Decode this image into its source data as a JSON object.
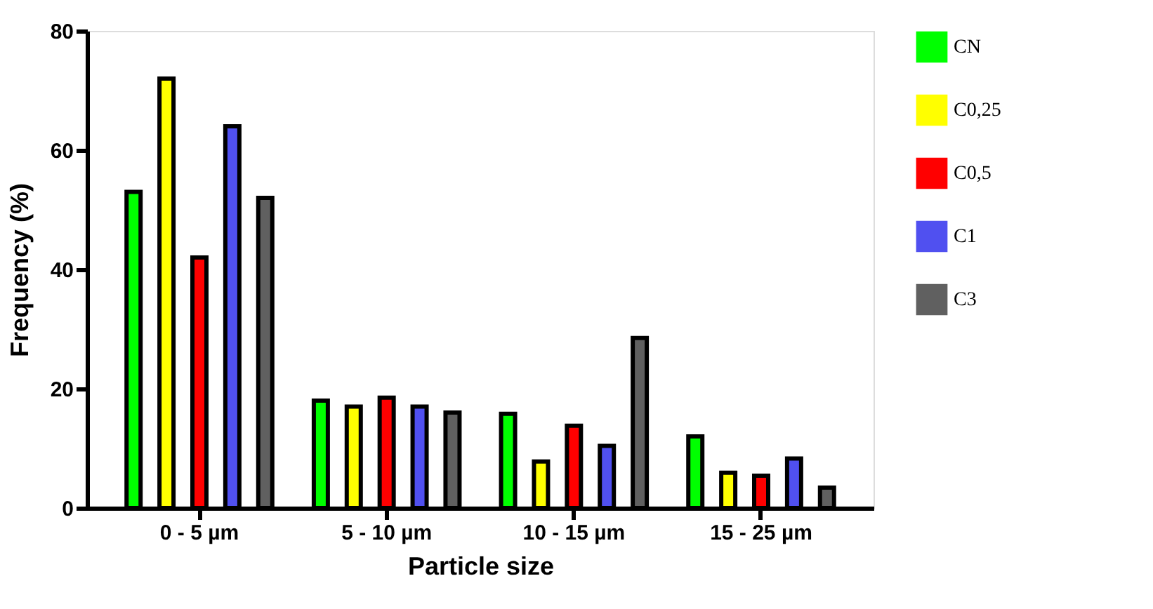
{
  "chart_data": {
    "type": "bar",
    "xlabel": "Particle size",
    "ylabel": "Frequency (%)",
    "categories": [
      "0 - 5 µm",
      "5 - 10 µm",
      "10 - 15 µm",
      "15 - 25 µm"
    ],
    "series": [
      {
        "name": "CN",
        "color": "#00ff00",
        "values": [
          53,
          18,
          15.8,
          12
        ]
      },
      {
        "name": "C0,25",
        "color": "#ffff00",
        "values": [
          72,
          17,
          7.8,
          5.9
        ]
      },
      {
        "name": "C0,5",
        "color": "#ff0000",
        "values": [
          42,
          18.5,
          13.8,
          5.4
        ]
      },
      {
        "name": "C1",
        "color": "#5050f0",
        "values": [
          64,
          17,
          10.4,
          8.3
        ]
      },
      {
        "name": "C3",
        "color": "#606060",
        "values": [
          52,
          16,
          28.5,
          3.4
        ]
      }
    ],
    "ylim": [
      0,
      80
    ],
    "yticks": [
      0,
      20,
      40,
      60,
      80
    ],
    "grid": false,
    "legend": "right"
  }
}
